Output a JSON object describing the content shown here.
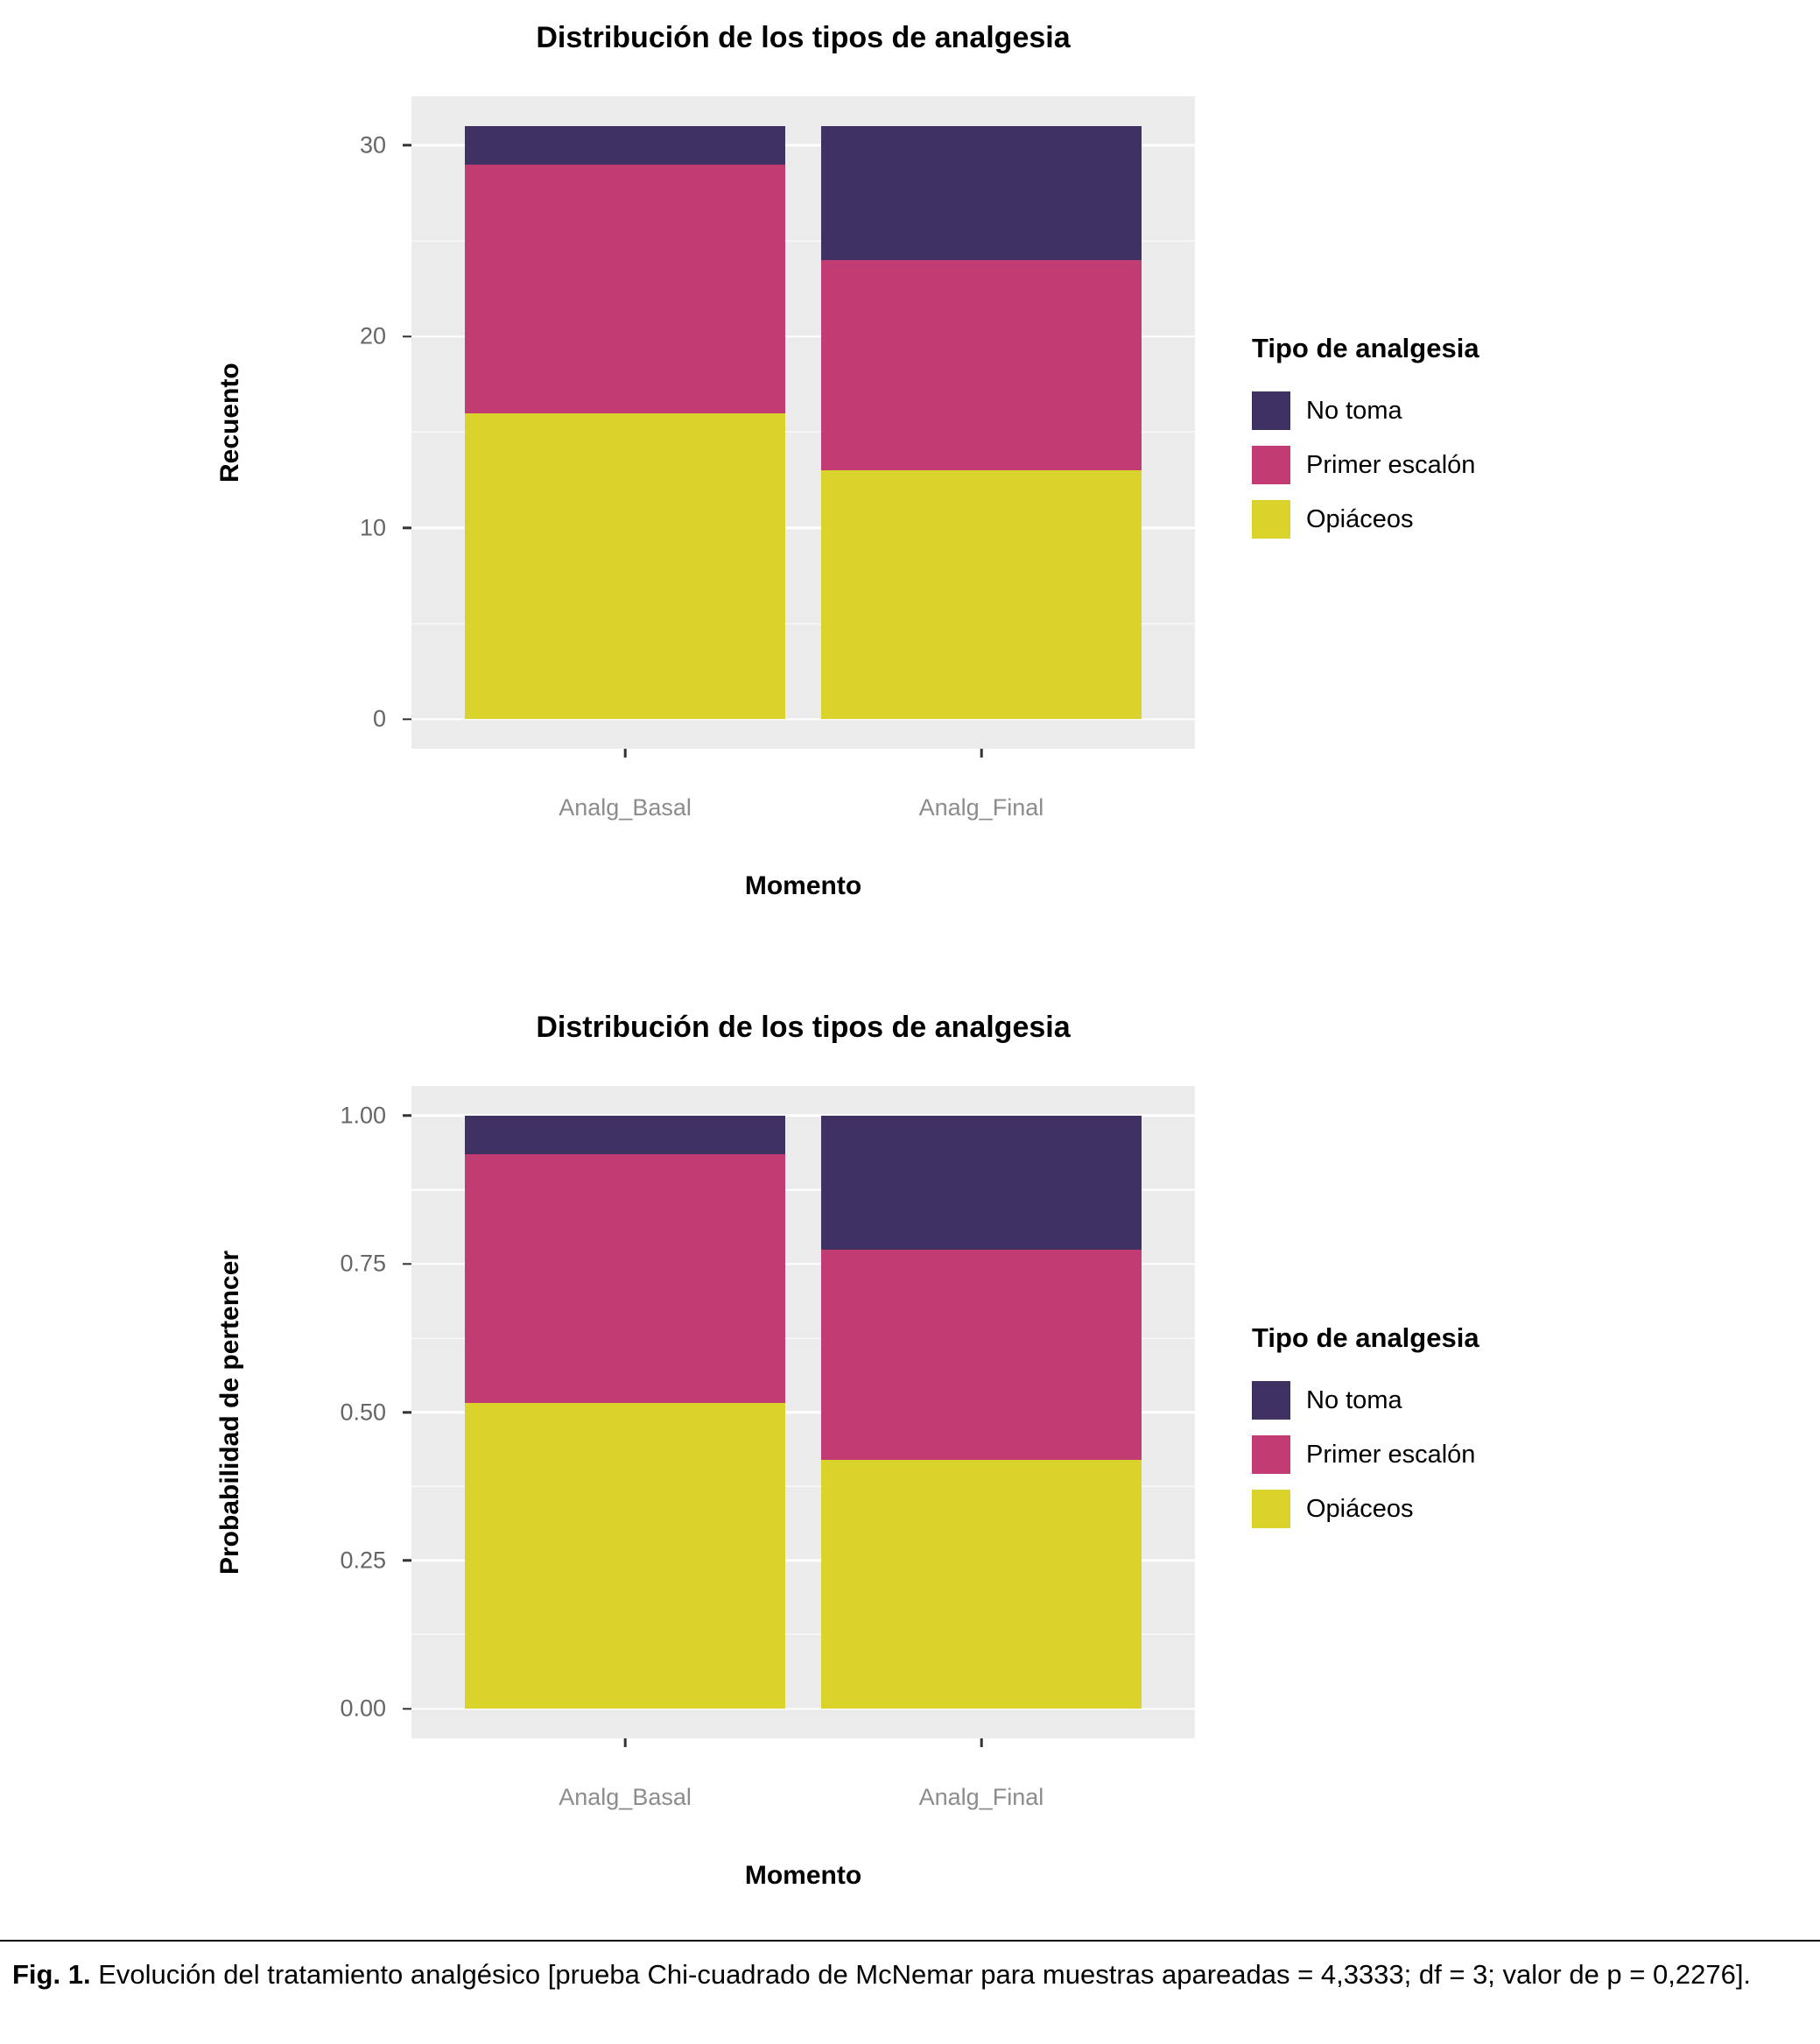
{
  "legend": {
    "title": "Tipo de analgesia",
    "entries": [
      {
        "label": "No toma",
        "color": "#3F3263"
      },
      {
        "label": "Primer escalón",
        "color": "#C23C74"
      },
      {
        "label": "Opiáceos",
        "color": "#D9D32B"
      }
    ]
  },
  "caption": {
    "prefix": "Fig. 1.",
    "text": "Evolución del tratamiento analgésico [prueba Chi-cuadrado de McNemar para muestras apareadas = 4,3333; df = 3; valor de p = 0,2276]."
  },
  "chart_data": [
    {
      "type": "bar",
      "stacked": true,
      "title": "Distribución de los tipos de analgesia",
      "xlabel": "Momento",
      "ylabel": "Recuento",
      "categories": [
        "Analg_Basal",
        "Analg_Final"
      ],
      "series": [
        {
          "name": "Opiáceos",
          "color": "#D9D32B",
          "values": [
            16,
            13
          ]
        },
        {
          "name": "Primer escalón",
          "color": "#C23C74",
          "values": [
            13,
            11
          ]
        },
        {
          "name": "No toma",
          "color": "#3F3263",
          "values": [
            2,
            7
          ]
        }
      ],
      "stack_order": "bottom-to-top",
      "totals": [
        31,
        31
      ],
      "yticks": [
        0,
        10,
        20,
        30
      ],
      "ytick_labels": [
        "0",
        "10",
        "20",
        "30"
      ],
      "yticks_minor": [
        5,
        15,
        25
      ],
      "panel_range": [
        -1.55,
        32.55
      ],
      "grid": true,
      "legend_position": "right",
      "panel_background": "#EBEBEB",
      "bar_centers_pct": [
        27.27,
        72.73
      ],
      "bar_width_pct": 40.9
    },
    {
      "type": "bar",
      "stacked": true,
      "title": "Distribución de los tipos de analgesia",
      "xlabel": "Momento",
      "ylabel": "Probabilidad de pertencer",
      "categories": [
        "Analg_Basal",
        "Analg_Final"
      ],
      "series": [
        {
          "name": "Opiáceos",
          "color": "#D9D32B",
          "values": [
            0.516,
            0.419
          ]
        },
        {
          "name": "Primer escalón",
          "color": "#C23C74",
          "values": [
            0.419,
            0.355
          ]
        },
        {
          "name": "No toma",
          "color": "#3F3263",
          "values": [
            0.065,
            0.226
          ]
        }
      ],
      "stack_order": "bottom-to-top",
      "yticks": [
        0,
        0.25,
        0.5,
        0.75,
        1.0
      ],
      "ytick_labels": [
        "0.00",
        "0.25",
        "0.50",
        "0.75",
        "1.00"
      ],
      "yticks_minor": [
        0.125,
        0.375,
        0.625,
        0.875
      ],
      "panel_range": [
        -0.05,
        1.05
      ],
      "grid": true,
      "legend_position": "right",
      "panel_background": "#EBEBEB",
      "bar_centers_pct": [
        27.27,
        72.73
      ],
      "bar_width_pct": 40.9
    }
  ]
}
